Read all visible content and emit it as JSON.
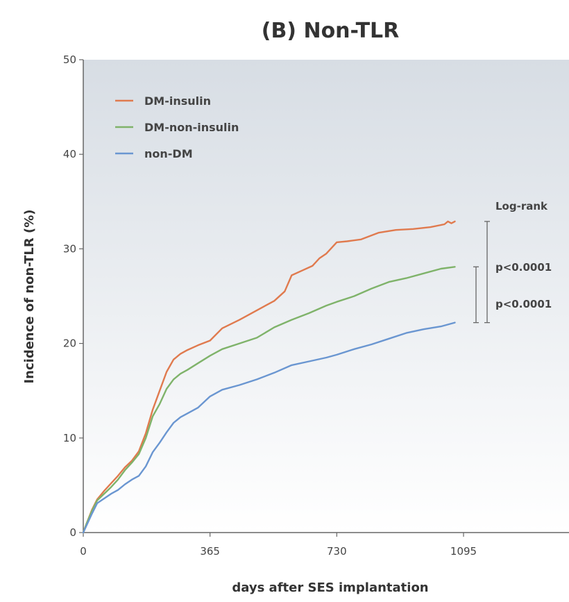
{
  "chart_data": {
    "type": "line",
    "title": "(B) Non-TLR",
    "xlabel": "days after SES implantation",
    "ylabel": "Incidence of non-TLR (%)",
    "xlim": [
      0,
      1095
    ],
    "ylim": [
      0,
      50
    ],
    "xticks": [
      0,
      365,
      730,
      1095
    ],
    "yticks": [
      0,
      10,
      20,
      30,
      40,
      50
    ],
    "grid": false,
    "legend": "top-left",
    "colors": {
      "plot_bg_top": "#d7dde4",
      "plot_bg_bottom": "#ffffff",
      "axis": "#666666",
      "bracket": "#666666"
    },
    "series": [
      {
        "name": "DM-insulin",
        "color": "#e07a4e",
        "points": [
          [
            0,
            0
          ],
          [
            10,
            1.0
          ],
          [
            25,
            2.4
          ],
          [
            40,
            3.5
          ],
          [
            60,
            4.4
          ],
          [
            80,
            5.2
          ],
          [
            100,
            6.0
          ],
          [
            120,
            6.9
          ],
          [
            140,
            7.6
          ],
          [
            160,
            8.6
          ],
          [
            180,
            10.5
          ],
          [
            200,
            13.0
          ],
          [
            220,
            15.0
          ],
          [
            240,
            17.0
          ],
          [
            260,
            18.3
          ],
          [
            280,
            18.9
          ],
          [
            300,
            19.3
          ],
          [
            330,
            19.8
          ],
          [
            365,
            20.3
          ],
          [
            400,
            21.6
          ],
          [
            450,
            22.5
          ],
          [
            500,
            23.5
          ],
          [
            550,
            24.5
          ],
          [
            580,
            25.5
          ],
          [
            600,
            27.2
          ],
          [
            630,
            27.7
          ],
          [
            660,
            28.2
          ],
          [
            680,
            29.0
          ],
          [
            700,
            29.5
          ],
          [
            730,
            30.7
          ],
          [
            760,
            30.8
          ],
          [
            800,
            31.0
          ],
          [
            850,
            31.7
          ],
          [
            900,
            32.0
          ],
          [
            950,
            32.1
          ],
          [
            1000,
            32.3
          ],
          [
            1040,
            32.6
          ],
          [
            1050,
            32.9
          ],
          [
            1060,
            32.7
          ],
          [
            1070,
            32.9
          ]
        ]
      },
      {
        "name": "DM-non-insulin",
        "color": "#7fb36a",
        "points": [
          [
            0,
            0
          ],
          [
            10,
            1.0
          ],
          [
            25,
            2.3
          ],
          [
            40,
            3.4
          ],
          [
            60,
            4.1
          ],
          [
            80,
            4.8
          ],
          [
            100,
            5.6
          ],
          [
            120,
            6.6
          ],
          [
            140,
            7.4
          ],
          [
            160,
            8.3
          ],
          [
            180,
            10.0
          ],
          [
            200,
            12.3
          ],
          [
            220,
            13.6
          ],
          [
            240,
            15.2
          ],
          [
            260,
            16.2
          ],
          [
            280,
            16.8
          ],
          [
            300,
            17.2
          ],
          [
            330,
            17.9
          ],
          [
            365,
            18.7
          ],
          [
            400,
            19.4
          ],
          [
            450,
            20.0
          ],
          [
            500,
            20.6
          ],
          [
            550,
            21.7
          ],
          [
            600,
            22.5
          ],
          [
            650,
            23.2
          ],
          [
            700,
            24.0
          ],
          [
            730,
            24.4
          ],
          [
            780,
            25.0
          ],
          [
            830,
            25.8
          ],
          [
            880,
            26.5
          ],
          [
            930,
            26.9
          ],
          [
            980,
            27.4
          ],
          [
            1030,
            27.9
          ],
          [
            1070,
            28.1
          ]
        ]
      },
      {
        "name": "non-DM",
        "color": "#6a96d1",
        "points": [
          [
            0,
            0
          ],
          [
            10,
            0.8
          ],
          [
            25,
            2.0
          ],
          [
            40,
            3.1
          ],
          [
            60,
            3.6
          ],
          [
            80,
            4.1
          ],
          [
            100,
            4.5
          ],
          [
            120,
            5.1
          ],
          [
            140,
            5.6
          ],
          [
            160,
            6.0
          ],
          [
            180,
            7.0
          ],
          [
            200,
            8.5
          ],
          [
            220,
            9.5
          ],
          [
            240,
            10.6
          ],
          [
            260,
            11.6
          ],
          [
            280,
            12.2
          ],
          [
            300,
            12.6
          ],
          [
            330,
            13.2
          ],
          [
            365,
            14.4
          ],
          [
            400,
            15.1
          ],
          [
            450,
            15.6
          ],
          [
            500,
            16.2
          ],
          [
            550,
            16.9
          ],
          [
            600,
            17.7
          ],
          [
            650,
            18.1
          ],
          [
            700,
            18.5
          ],
          [
            730,
            18.8
          ],
          [
            780,
            19.4
          ],
          [
            830,
            19.9
          ],
          [
            880,
            20.5
          ],
          [
            930,
            21.1
          ],
          [
            980,
            21.5
          ],
          [
            1030,
            21.8
          ],
          [
            1070,
            22.2
          ]
        ]
      }
    ],
    "annotations": {
      "logrank_label": "Log-rank",
      "p1": "p<0.0001",
      "p2": "p<0.0001"
    }
  }
}
